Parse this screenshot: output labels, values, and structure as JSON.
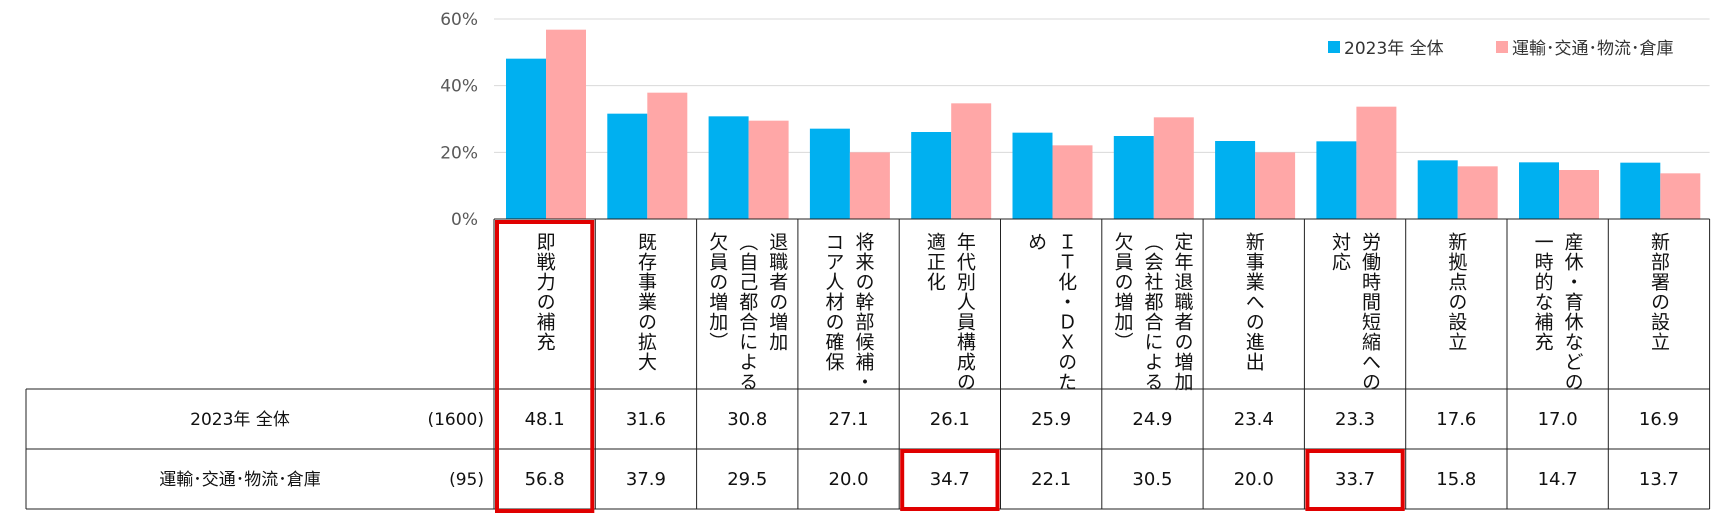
{
  "chart_data": {
    "type": "bar",
    "ylim": [
      0,
      60
    ],
    "yticks": [
      "0%",
      "20%",
      "40%",
      "60%"
    ],
    "grid": true,
    "legend_position": "top-right",
    "colors": {
      "series1": "#00B0F0",
      "series2": "#FFA7A7",
      "highlight": "#E00000"
    },
    "categories": [
      [
        "即戦力の補充"
      ],
      [
        "既存事業の拡大"
      ],
      [
        "退職者の増加",
        "（自己都合による",
        "欠員の増加）"
      ],
      [
        "将来の幹部候補・",
        "コア人材の確保"
      ],
      [
        "年代別人員構成の",
        "適正化"
      ],
      [
        "ＩＴ化・ＤＸのた",
        "め"
      ],
      [
        "定年退職者の増加",
        "（会社都合による",
        "欠員の増加）"
      ],
      [
        "新事業への進出"
      ],
      [
        "労働時間短縮への",
        "対応"
      ],
      [
        "新拠点の設立"
      ],
      [
        "産休・育休などの",
        "一時的な補充"
      ],
      [
        "新部署の設立"
      ]
    ],
    "series": [
      {
        "name": "2023年  全体",
        "n": "(1600)",
        "values": [
          48.1,
          31.6,
          30.8,
          27.1,
          26.1,
          25.9,
          24.9,
          23.4,
          23.3,
          17.6,
          17.0,
          16.9
        ],
        "labels": [
          "48.1",
          "31.6",
          "30.8",
          "27.1",
          "26.1",
          "25.9",
          "24.9",
          "23.4",
          "23.3",
          "17.6",
          "17.0",
          "16.9"
        ]
      },
      {
        "name": "運輸･交通･物流･倉庫",
        "n": "(95)",
        "values": [
          56.8,
          37.9,
          29.5,
          20.0,
          34.7,
          22.1,
          30.5,
          20.0,
          33.7,
          15.8,
          14.7,
          13.7
        ],
        "labels": [
          "56.8",
          "37.9",
          "29.5",
          "20.0",
          "34.7",
          "22.1",
          "30.5",
          "20.0",
          "33.7",
          "15.8",
          "14.7",
          "13.7"
        ]
      }
    ],
    "highlights": [
      {
        "type": "column",
        "category": 0
      },
      {
        "type": "cell",
        "series": 1,
        "category": 4
      },
      {
        "type": "cell",
        "series": 1,
        "category": 8
      }
    ]
  }
}
